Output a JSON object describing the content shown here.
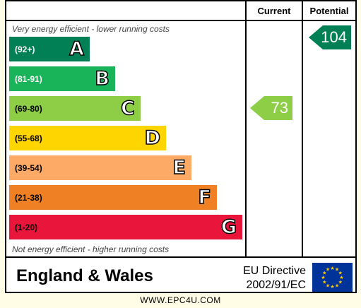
{
  "chart_data": {
    "type": "bar",
    "columns": {
      "current": "Current",
      "potential": "Potential"
    },
    "top_caption": "Very energy efficient - lower running costs",
    "bottom_caption": "Not energy efficient - higher running costs",
    "bands": [
      {
        "letter": "A",
        "range": "(92+)",
        "color": "#008054",
        "range_color": "#ffffff"
      },
      {
        "letter": "B",
        "range": "(81-91)",
        "color": "#19b459",
        "range_color": "#ffffff"
      },
      {
        "letter": "C",
        "range": "(69-80)",
        "color": "#8dce46",
        "range_color": "#000000"
      },
      {
        "letter": "D",
        "range": "(55-68)",
        "color": "#ffd500",
        "range_color": "#000000"
      },
      {
        "letter": "E",
        "range": "(39-54)",
        "color": "#fcaa65",
        "range_color": "#000000"
      },
      {
        "letter": "F",
        "range": "(21-38)",
        "color": "#ef8023",
        "range_color": "#000000"
      },
      {
        "letter": "G",
        "range": "(1-20)",
        "color": "#e9153b",
        "range_color": "#000000"
      }
    ],
    "current": {
      "value": "73",
      "band": "C",
      "color": "#8dce46"
    },
    "potential": {
      "value": "104",
      "band": "A",
      "color": "#008054"
    }
  },
  "footer": {
    "region": "England & Wales",
    "directive_line1": "EU Directive",
    "directive_line2": "2002/91/EC",
    "website": "WWW.EPC4U.COM"
  }
}
